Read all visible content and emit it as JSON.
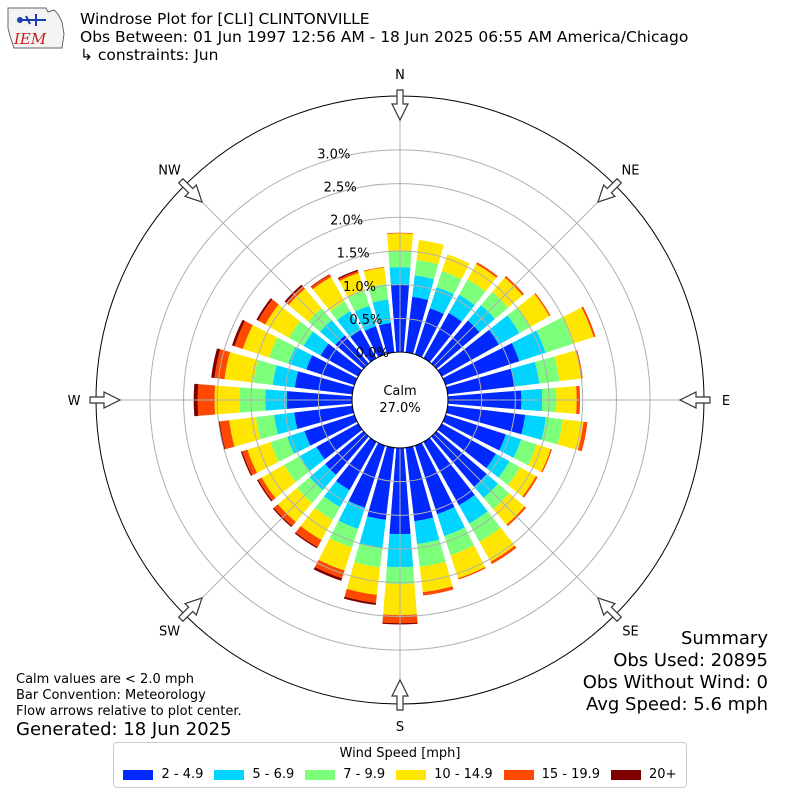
{
  "header": {
    "logo_text": "IEM",
    "title": "Windrose Plot for [CLI] CLINTONVILLE",
    "subtitle": "Obs Between: 01 Jun 1997 12:56 AM - 18 Jun 2025 06:55 AM America/Chicago",
    "constraints": "↳ constraints: Jun"
  },
  "summary": {
    "heading": "Summary",
    "obs_used": "Obs Used: 20895",
    "obs_without_wind": "Obs Without Wind: 0",
    "avg_speed": "Avg Speed: 5.6 mph"
  },
  "notes": {
    "calm_note": "Calm values are < 2.0 mph",
    "bar_convention": "Bar Convention: Meteorology",
    "flow_arrows": "Flow arrows relative to plot center."
  },
  "generated": "Generated: 18 Jun 2025",
  "chart_data": {
    "type": "windrose",
    "calm_label": "Calm",
    "calm_value": "27.0%",
    "radial_ticks": [
      "0.0%",
      "0.5%",
      "1.0%",
      "1.5%",
      "2.0%",
      "2.5%",
      "3.0%"
    ],
    "radial_tick_values": [
      0,
      0.5,
      1.0,
      1.5,
      2.0,
      2.5,
      3.0
    ],
    "r_max": 3.8,
    "directions": [
      "N",
      "NNE",
      "NE",
      "ENE",
      "E",
      "ESE",
      "SE",
      "SSE",
      "S",
      "SSW",
      "SW",
      "WSW",
      "W",
      "WNW",
      "NW",
      "NNW"
    ],
    "compass_labels": [
      "N",
      "NE",
      "E",
      "SE",
      "S",
      "SW",
      "W",
      "NW"
    ],
    "legend_title": "Wind Speed [mph]",
    "speed_bins": [
      "2 - 4.9",
      "5 - 6.9",
      "7 - 9.9",
      "10 - 14.9",
      "15 - 19.9",
      "20+"
    ],
    "colors": [
      "#0028ff",
      "#00d4ff",
      "#7cff7a",
      "#ffe600",
      "#ff4800",
      "#800000"
    ],
    "sector_bounds": [
      [
        1.0,
        1.26,
        1.5,
        1.76,
        1.77,
        1.77
      ],
      [
        0.83,
        1.15,
        1.38,
        1.68,
        1.68,
        1.68
      ],
      [
        0.72,
        1.05,
        1.3,
        1.56,
        1.56,
        1.56
      ],
      [
        0.77,
        1.08,
        1.34,
        1.6,
        1.63,
        1.63
      ],
      [
        0.84,
        1.14,
        1.4,
        1.68,
        1.71,
        1.71
      ],
      [
        0.97,
        1.32,
        1.51,
        1.83,
        1.85,
        1.85
      ],
      [
        1.15,
        1.56,
        1.99,
        2.31,
        2.34,
        2.34
      ],
      [
        1.0,
        1.37,
        1.67,
        2.0,
        2.02,
        2.02
      ],
      [
        1.09,
        1.4,
        1.61,
        1.91,
        1.96,
        1.96
      ],
      [
        1.16,
        1.47,
        1.72,
        2.03,
        2.09,
        2.09
      ],
      [
        0.94,
        1.18,
        1.42,
        1.64,
        1.66,
        1.66
      ],
      [
        0.92,
        1.15,
        1.33,
        1.6,
        1.63,
        1.63
      ],
      [
        0.98,
        1.2,
        1.42,
        1.72,
        1.75,
        1.75
      ],
      [
        1.08,
        1.39,
        1.7,
        2.04,
        2.08,
        2.08
      ],
      [
        1.07,
        1.41,
        1.71,
        2.07,
        2.09,
        2.09
      ],
      [
        1.1,
        1.44,
        1.78,
        2.16,
        2.21,
        2.21
      ],
      [
        1.28,
        1.77,
        2.02,
        2.48,
        2.6,
        2.62
      ],
      [
        1.08,
        1.5,
        1.79,
        2.2,
        2.32,
        2.35
      ],
      [
        0.97,
        1.3,
        1.59,
        1.95,
        2.07,
        2.11
      ],
      [
        0.82,
        1.11,
        1.33,
        1.67,
        1.79,
        1.81
      ],
      [
        0.75,
        1.05,
        1.3,
        1.67,
        1.75,
        1.77
      ],
      [
        0.71,
        0.99,
        1.26,
        1.64,
        1.7,
        1.72
      ],
      [
        0.78,
        1.05,
        1.31,
        1.67,
        1.75,
        1.77
      ],
      [
        0.87,
        1.17,
        1.44,
        1.84,
        1.98,
        2.0
      ],
      [
        0.97,
        1.29,
        1.67,
        2.04,
        2.29,
        2.35
      ],
      [
        0.86,
        1.19,
        1.48,
        1.91,
        2.06,
        2.11
      ],
      [
        0.75,
        1.03,
        1.33,
        1.74,
        1.87,
        1.91
      ],
      [
        0.64,
        0.93,
        1.18,
        1.58,
        1.7,
        1.73
      ],
      [
        0.55,
        0.85,
        1.08,
        1.46,
        1.51,
        1.54
      ],
      [
        0.48,
        0.8,
        0.97,
        1.38,
        1.42,
        1.43
      ],
      [
        0.44,
        0.76,
        0.99,
        1.27,
        1.3,
        1.32
      ],
      [
        0.44,
        0.79,
        1.02,
        1.27,
        1.28,
        1.28
      ]
    ]
  }
}
